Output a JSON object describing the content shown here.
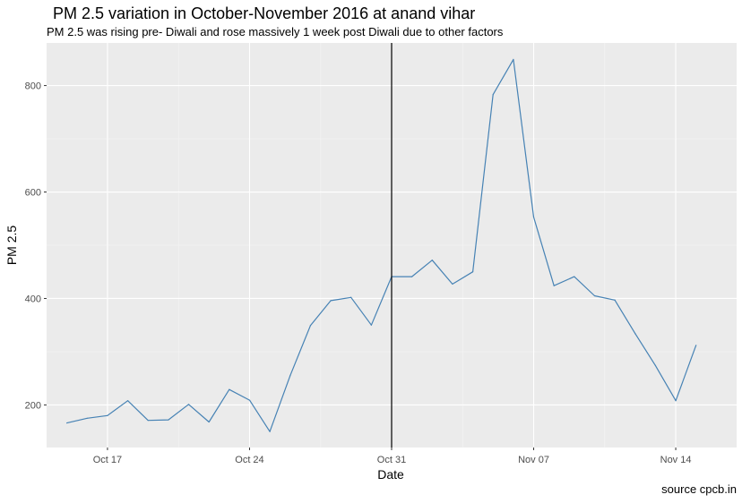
{
  "chart_data": {
    "type": "line",
    "title": "PM 2.5 variation in October-November 2016 at anand vihar",
    "subtitle": "PM 2.5 was rising pre- Diwali and rose massively 1 week post Diwali due to other factors",
    "caption": "source cpcb.in",
    "xlabel": "Date",
    "ylabel": "PM 2.5",
    "x_ticks": [
      "Oct 17",
      "Oct 24",
      "Oct 31",
      "Nov 07",
      "Nov 14"
    ],
    "y_ticks": [
      200,
      400,
      600,
      800
    ],
    "xlim": [
      "2016-10-14",
      "2016-11-17"
    ],
    "ylim": [
      120,
      880
    ],
    "grid": true,
    "line_color": "#4682B4",
    "vline": {
      "x": "2016-10-31",
      "color": "#000000"
    },
    "series": [
      {
        "x": [
          "2016-10-15",
          "2016-10-16",
          "2016-10-17",
          "2016-10-18",
          "2016-10-19",
          "2016-10-20",
          "2016-10-21",
          "2016-10-22",
          "2016-10-23",
          "2016-10-24",
          "2016-10-25",
          "2016-10-26",
          "2016-10-27",
          "2016-10-28",
          "2016-10-29",
          "2016-10-30",
          "2016-10-31",
          "2016-11-01",
          "2016-11-02",
          "2016-11-03",
          "2016-11-04",
          "2016-11-05",
          "2016-11-06",
          "2016-11-07",
          "2016-11-08",
          "2016-11-09",
          "2016-11-10",
          "2016-11-11",
          "2016-11-12",
          "2016-11-13",
          "2016-11-14",
          "2016-11-15"
        ],
        "values": [
          166,
          175,
          180,
          208,
          171,
          172,
          201,
          168,
          229,
          209,
          150,
          255,
          349,
          396,
          402,
          350,
          441,
          441,
          472,
          427,
          450,
          783,
          849,
          553,
          424,
          441,
          405,
          397,
          334,
          274,
          208,
          312
        ]
      }
    ]
  }
}
